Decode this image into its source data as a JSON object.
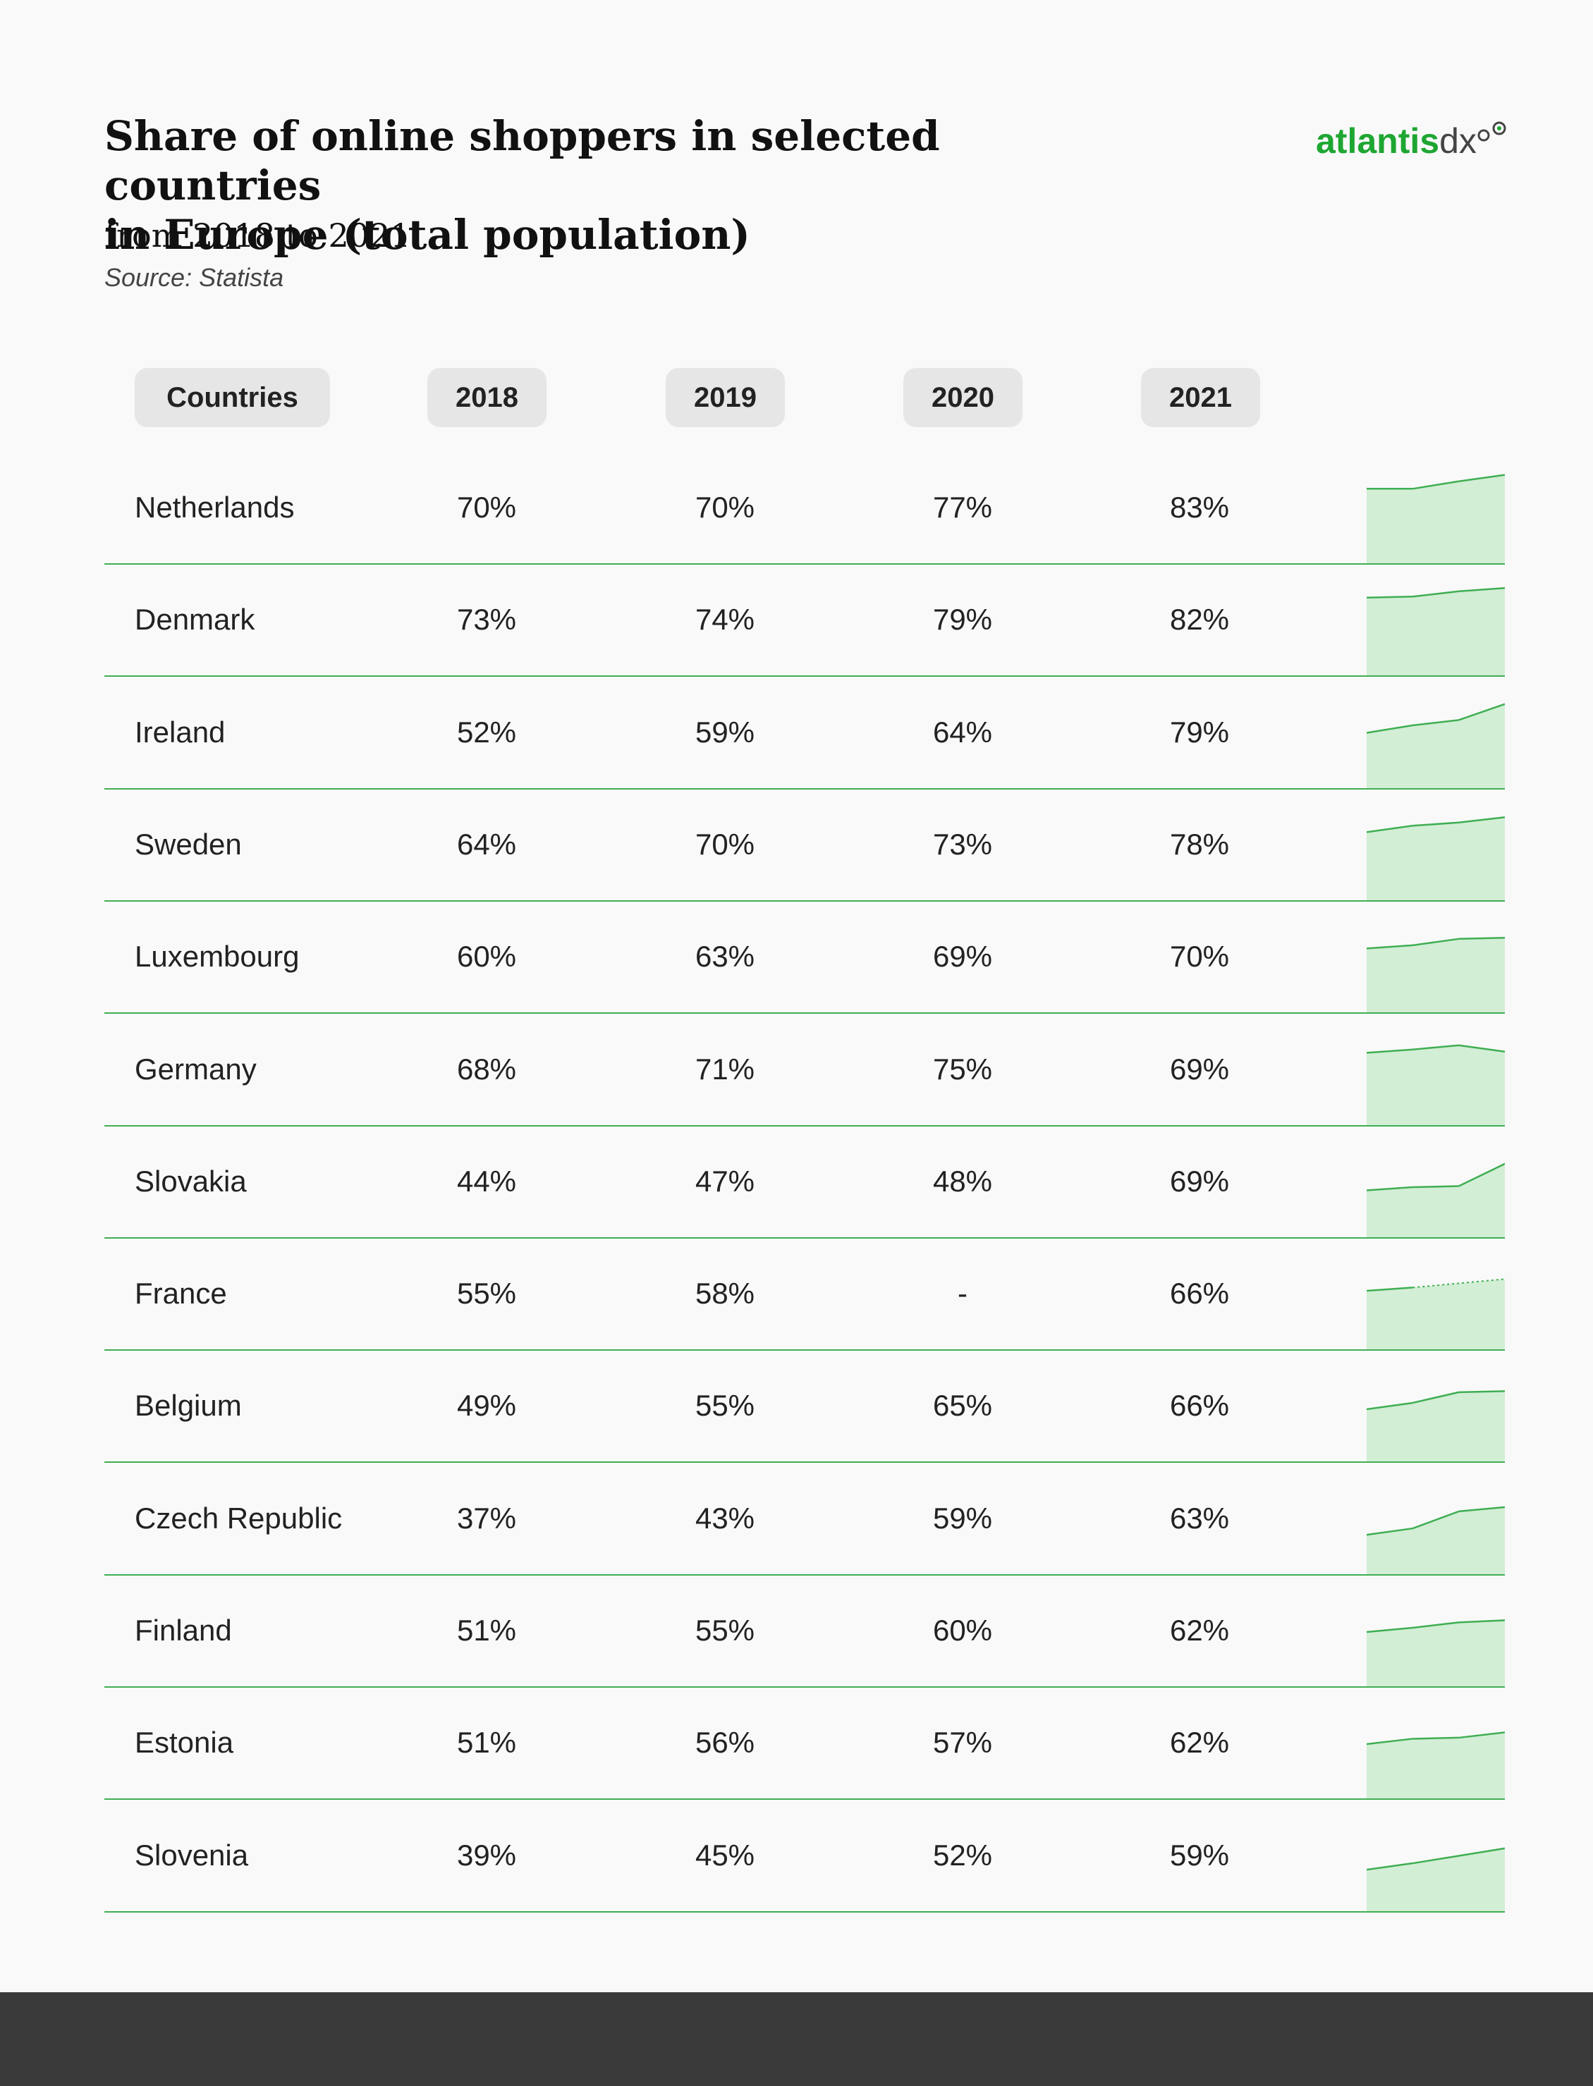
{
  "header": {
    "title_line1": "Share of online shoppers in selected countries",
    "title_line2": "in Europe (total population)",
    "subtitle": "from 2018 to 2021",
    "source": "Source: Statista",
    "brand_part1": "atlantis",
    "brand_part2": "dx"
  },
  "colors": {
    "accent": "#1ea632",
    "line": "#3fae52",
    "area": "#d2eed5",
    "header_bg": "#e6e6e6",
    "footer": "#3a3a3a"
  },
  "chart_data": {
    "type": "table",
    "columns": [
      "Countries",
      "2018",
      "2019",
      "2020",
      "2021"
    ],
    "years": [
      2018,
      2019,
      2020,
      2021
    ],
    "rows": [
      {
        "country": "Netherlands",
        "values": [
          "70%",
          "70%",
          "77%",
          "83%"
        ],
        "series": [
          70,
          70,
          77,
          83
        ]
      },
      {
        "country": "Denmark",
        "values": [
          "73%",
          "74%",
          "79%",
          "82%"
        ],
        "series": [
          73,
          74,
          79,
          82
        ]
      },
      {
        "country": "Ireland",
        "values": [
          "52%",
          "59%",
          "64%",
          "79%"
        ],
        "series": [
          52,
          59,
          64,
          79
        ]
      },
      {
        "country": "Sweden",
        "values": [
          "64%",
          "70%",
          "73%",
          "78%"
        ],
        "series": [
          64,
          70,
          73,
          78
        ]
      },
      {
        "country": "Luxembourg",
        "values": [
          "60%",
          "63%",
          "69%",
          "70%"
        ],
        "series": [
          60,
          63,
          69,
          70
        ]
      },
      {
        "country": "Germany",
        "values": [
          "68%",
          "71%",
          "75%",
          "69%"
        ],
        "series": [
          68,
          71,
          75,
          69
        ]
      },
      {
        "country": "Slovakia",
        "values": [
          "44%",
          "47%",
          "48%",
          "69%"
        ],
        "series": [
          44,
          47,
          48,
          69
        ]
      },
      {
        "country": "France",
        "values": [
          "55%",
          "58%",
          "-",
          "66%"
        ],
        "series": [
          55,
          58,
          null,
          66
        ]
      },
      {
        "country": "Belgium",
        "values": [
          "49%",
          "55%",
          "65%",
          "66%"
        ],
        "series": [
          49,
          55,
          65,
          66
        ]
      },
      {
        "country": "Czech Republic",
        "values": [
          "37%",
          "43%",
          "59%",
          "63%"
        ],
        "series": [
          37,
          43,
          59,
          63
        ]
      },
      {
        "country": "Finland",
        "values": [
          "51%",
          "55%",
          "60%",
          "62%"
        ],
        "series": [
          51,
          55,
          60,
          62
        ]
      },
      {
        "country": "Estonia",
        "values": [
          "51%",
          "56%",
          "57%",
          "62%"
        ],
        "series": [
          51,
          56,
          57,
          62
        ]
      },
      {
        "country": "Slovenia",
        "values": [
          "39%",
          "45%",
          "52%",
          "59%"
        ],
        "series": [
          39,
          45,
          52,
          59
        ]
      }
    ],
    "sparkline_ylim": [
      0,
      100
    ]
  }
}
